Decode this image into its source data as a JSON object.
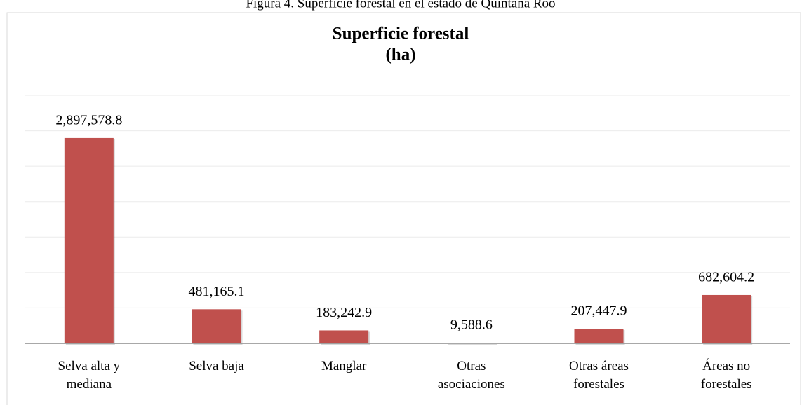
{
  "caption": "Figura 4. Superficie forestal en el estado de Quintana Roo",
  "chart_data": {
    "type": "bar",
    "title": "Superficie forestal",
    "subtitle": "(ha)",
    "categories": [
      "Selva alta y mediana",
      "Selva baja",
      "Manglar",
      "Otras asociaciones",
      "Otras áreas forestales",
      "Áreas no forestales"
    ],
    "values": [
      2897578.8,
      481165.1,
      183242.9,
      9588.6,
      207447.9,
      682604.2
    ],
    "value_labels": [
      "2,897,578.8",
      "481,165.1",
      "183,242.9",
      "9,588.6",
      "207,447.9",
      "682,604.2"
    ],
    "color": "#c0504d",
    "ylim": [
      0,
      3500000
    ],
    "yticks": [
      0,
      500000,
      1000000,
      1500000,
      2000000,
      2500000,
      3000000,
      3500000
    ],
    "grid": true
  }
}
